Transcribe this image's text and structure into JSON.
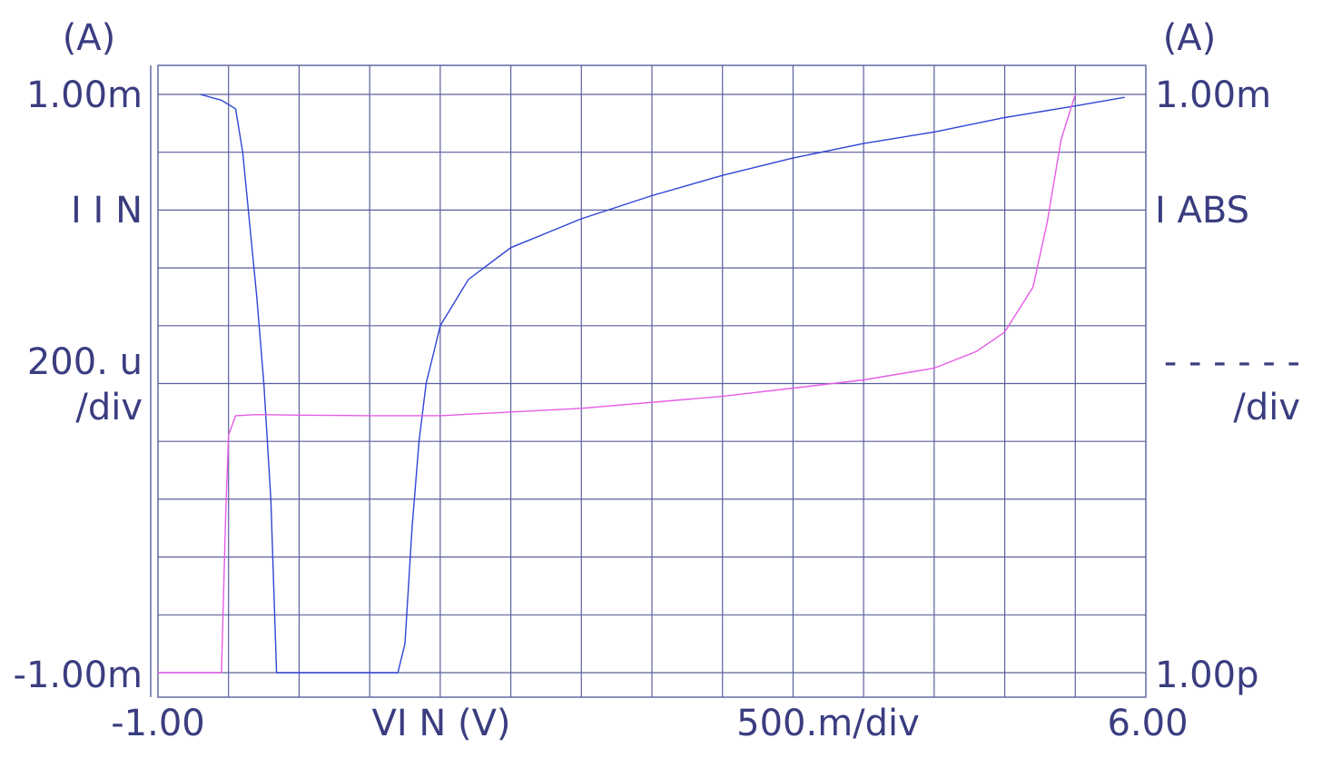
{
  "labels": {
    "left_unit": "(A)",
    "right_unit": "(A)",
    "left_top": "1.00m",
    "right_top": "1.00m",
    "left_name": "I I N",
    "right_name": "I ABS",
    "left_scale": "200. u",
    "left_div": "/div",
    "right_scale": "- - - - - -",
    "right_div": "/div",
    "left_bottom": "-1.00m",
    "right_bottom": "1.00p",
    "x_min": "-1.00",
    "x_name": "VI N (V)",
    "x_scale": "500.m/div",
    "x_max": "6.00"
  },
  "colors": {
    "grid": "#5a5f9e",
    "text": "#3a3d80",
    "iin": "#2f45d6",
    "iabs": "#e65ce6"
  },
  "chart_data": {
    "type": "line",
    "xlabel": "VI N (V)",
    "xlim": [
      -1.0,
      6.0
    ],
    "x_div": "500.m/div",
    "grid": true,
    "left_axis": {
      "label": "I I N",
      "unit": "(A)",
      "range": [
        -0.001,
        0.001
      ],
      "div": "200. u"
    },
    "right_axis": {
      "label": "I ABS",
      "unit": "(A)",
      "range": [
        1e-12,
        0.001
      ],
      "scale": "log"
    },
    "series": [
      {
        "axis": "left",
        "color": "#2f45d6",
        "points": [
          [
            -0.7,
            0.001
          ],
          [
            -0.55,
            0.00098
          ],
          [
            -0.45,
            0.00095
          ],
          [
            -0.4,
            0.0008
          ],
          [
            -0.3,
            0.0003
          ],
          [
            -0.25,
            0.0
          ],
          [
            -0.2,
            -0.0004
          ],
          [
            -0.16,
            -0.001
          ],
          [
            0.7,
            -0.001
          ],
          [
            0.75,
            -0.0009
          ],
          [
            0.8,
            -0.0005
          ],
          [
            0.85,
            -0.0002
          ],
          [
            0.9,
            0.0
          ],
          [
            1.0,
            0.0002
          ],
          [
            1.2,
            0.00036
          ],
          [
            1.5,
            0.00047
          ],
          [
            2.0,
            0.00057
          ],
          [
            2.5,
            0.00065
          ],
          [
            3.0,
            0.00072
          ],
          [
            3.5,
            0.00078
          ],
          [
            4.0,
            0.00083
          ],
          [
            4.5,
            0.00087
          ],
          [
            5.0,
            0.00092
          ],
          [
            5.5,
            0.00096
          ],
          [
            5.85,
            0.00099
          ]
        ]
      },
      {
        "axis": "right",
        "color": "#e65ce6",
        "points": [
          [
            -1.0,
            1e-12
          ],
          [
            -0.55,
            1e-12
          ],
          [
            -0.52,
            3e-10
          ],
          [
            -0.5,
            5e-09
          ],
          [
            -0.45,
            1e-08
          ],
          [
            -0.3,
            1.04e-08
          ],
          [
            0.0,
            1.02e-08
          ],
          [
            0.5,
            1e-08
          ],
          [
            1.0,
            1e-08
          ],
          [
            2.0,
            1.3e-08
          ],
          [
            3.0,
            2e-08
          ],
          [
            4.0,
            3.6e-08
          ],
          [
            4.5,
            5.5e-08
          ],
          [
            4.8,
            1e-07
          ],
          [
            5.0,
            2e-07
          ],
          [
            5.2,
            1e-06
          ],
          [
            5.3,
            1e-05
          ],
          [
            5.4,
            0.0002
          ],
          [
            5.5,
            0.001
          ]
        ]
      }
    ]
  }
}
